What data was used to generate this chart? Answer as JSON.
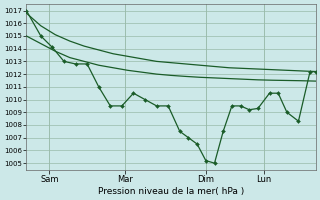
{
  "xlabel": "Pression niveau de la mer( hPa )",
  "ylim": [
    1004.5,
    1017.5
  ],
  "yticks": [
    1005,
    1006,
    1007,
    1008,
    1009,
    1010,
    1011,
    1012,
    1013,
    1014,
    1015,
    1016,
    1017
  ],
  "bg_color": "#cce8e8",
  "grid_color": "#99bbaa",
  "line_color": "#1a5c28",
  "xtick_labels": [
    "Sam",
    "Mar",
    "Dim",
    "Lun"
  ],
  "xtick_positions": [
    8,
    34,
    62,
    82
  ],
  "xlim": [
    0,
    100
  ],
  "smooth1_x": [
    0,
    5,
    10,
    15,
    20,
    25,
    30,
    35,
    40,
    45,
    50,
    55,
    60,
    65,
    70,
    75,
    80,
    85,
    90,
    95,
    100
  ],
  "smooth1_y": [
    1016.8,
    1015.8,
    1015.1,
    1014.6,
    1014.2,
    1013.9,
    1013.6,
    1013.4,
    1013.2,
    1013.0,
    1012.9,
    1012.8,
    1012.7,
    1012.6,
    1012.5,
    1012.45,
    1012.4,
    1012.35,
    1012.3,
    1012.25,
    1012.2
  ],
  "smooth2_x": [
    0,
    5,
    10,
    15,
    20,
    25,
    30,
    35,
    40,
    45,
    50,
    55,
    60,
    65,
    70,
    75,
    80,
    85,
    90,
    95,
    100
  ],
  "smooth2_y": [
    1015.0,
    1014.4,
    1013.8,
    1013.3,
    1013.0,
    1012.7,
    1012.5,
    1012.3,
    1012.15,
    1012.0,
    1011.9,
    1011.82,
    1011.75,
    1011.7,
    1011.65,
    1011.6,
    1011.55,
    1011.52,
    1011.5,
    1011.48,
    1011.45
  ],
  "jagged_x": [
    0,
    5,
    9,
    13,
    17,
    21,
    25,
    29,
    33,
    37,
    41,
    45,
    49,
    53,
    56,
    59,
    62,
    65,
    68,
    71,
    74,
    77,
    80,
    84,
    87,
    90,
    94,
    98,
    100
  ],
  "jagged_y": [
    1017.0,
    1015.0,
    1014.1,
    1013.0,
    1012.8,
    1012.8,
    1011.0,
    1009.5,
    1009.5,
    1010.5,
    1010.0,
    1009.5,
    1009.5,
    1007.5,
    1007.0,
    1006.5,
    1005.2,
    1005.0,
    1007.5,
    1009.5,
    1009.5,
    1009.2,
    1009.3,
    1010.5,
    1010.5,
    1009.0,
    1008.3,
    1012.2,
    1012.2
  ]
}
